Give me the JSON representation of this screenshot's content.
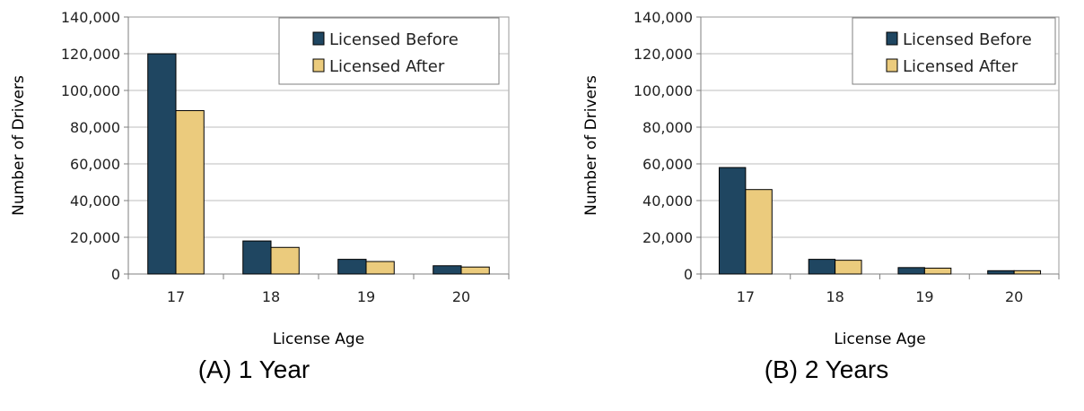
{
  "chart_data": [
    {
      "type": "bar",
      "caption": "(A) 1 Year",
      "xlabel": "License Age",
      "ylabel": "Number of Drivers",
      "categories": [
        "17",
        "18",
        "19",
        "20"
      ],
      "ylim": [
        0,
        140000
      ],
      "yticks": [
        "0",
        "20,000",
        "40,000",
        "60,000",
        "80,000",
        "100,000",
        "120,000",
        "140,000"
      ],
      "grid": true,
      "legend_position": "top-right",
      "series": [
        {
          "name": "Licensed Before",
          "color": "#1f4661",
          "values": [
            120000,
            18000,
            8000,
            4500
          ]
        },
        {
          "name": "Licensed After",
          "color": "#ebcb7d",
          "values": [
            89000,
            14500,
            6800,
            3800
          ]
        }
      ]
    },
    {
      "type": "bar",
      "caption": "(B) 2 Years",
      "xlabel": "License Age",
      "ylabel": "Number of Drivers",
      "categories": [
        "17",
        "18",
        "19",
        "20"
      ],
      "ylim": [
        0,
        140000
      ],
      "yticks": [
        "0",
        "20,000",
        "40,000",
        "60,000",
        "80,000",
        "100,000",
        "120,000",
        "140,000"
      ],
      "grid": true,
      "legend_position": "top-right",
      "series": [
        {
          "name": "Licensed Before",
          "color": "#1f4661",
          "values": [
            58000,
            8000,
            3500,
            1800
          ]
        },
        {
          "name": "Licensed After",
          "color": "#ebcb7d",
          "values": [
            46000,
            7500,
            3200,
            1800
          ]
        }
      ]
    }
  ]
}
